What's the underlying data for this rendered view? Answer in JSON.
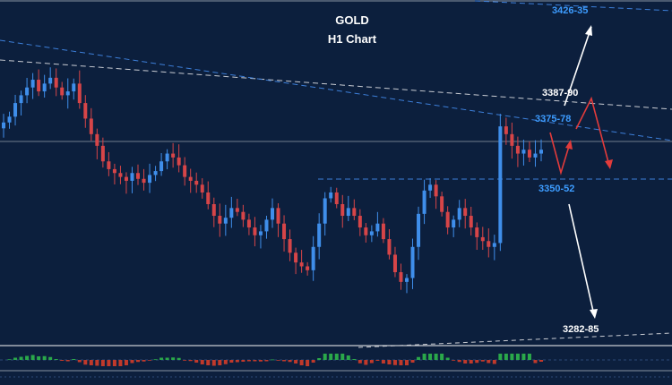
{
  "chart_data": {
    "type": "candlestick",
    "title": "GOLD",
    "subtitle": "H1 Chart",
    "levels": [
      {
        "label": "3426-35",
        "value": 3430,
        "color": "#3d9cff"
      },
      {
        "label": "3387-90",
        "value": 3388,
        "color": "#ffffff"
      },
      {
        "label": "3375-78",
        "value": 3376,
        "color": "#3d9cff"
      },
      {
        "label": "3350-52",
        "value": 3351,
        "color": "#3d9cff"
      },
      {
        "label": "3282-85",
        "value": 3283,
        "color": "#ffffff"
      }
    ],
    "close": [
      3382,
      3385,
      3392,
      3396,
      3400,
      3404,
      3398,
      3402,
      3405,
      3400,
      3396,
      3398,
      3402,
      3392,
      3384,
      3376,
      3370,
      3362,
      3358,
      3356,
      3354,
      3352,
      3356,
      3353,
      3351,
      3355,
      3357,
      3362,
      3366,
      3364,
      3360,
      3354,
      3352,
      3350,
      3346,
      3340,
      3334,
      3330,
      3333,
      3338,
      3336,
      3332,
      3328,
      3324,
      3326,
      3332,
      3338,
      3330,
      3322,
      3315,
      3310,
      3308,
      3306,
      3318,
      3330,
      3343,
      3346,
      3340,
      3334,
      3338,
      3334,
      3328,
      3324,
      3326,
      3330,
      3322,
      3314,
      3305,
      3300,
      3302,
      3318,
      3335,
      3347,
      3350,
      3344,
      3336,
      3328,
      3332,
      3338,
      3334,
      3328,
      3323,
      3321,
      3318,
      3320,
      3380,
      3376,
      3370,
      3366,
      3368,
      3364,
      3366,
      3368
    ],
    "ylim": [
      3270,
      3445
    ],
    "colors": {
      "background": "#0c1f3d",
      "bull": "#3f8eea",
      "bear": "#d64548",
      "osc_up": "#2aa84a",
      "osc_down": "#c0392b"
    }
  }
}
